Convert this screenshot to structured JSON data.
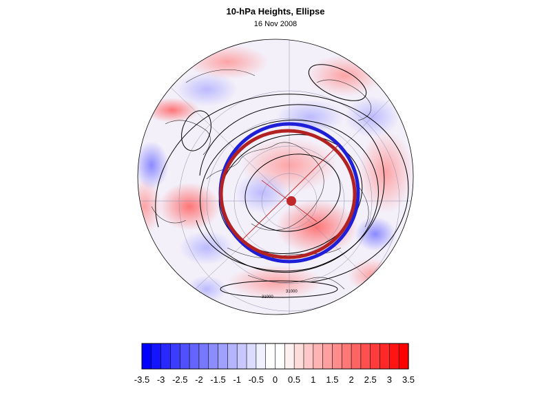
{
  "title": "10-hPa Heights, Ellipse",
  "subtitle": "16 Nov 2008",
  "map": {
    "projection": "north-polar-orthographic",
    "field": "height anomaly (shaded)",
    "contour_labels": [
      "31000",
      "31000"
    ],
    "ellipse_colors": {
      "outer": "#1f1fd8",
      "inner": "#b22222"
    },
    "centroid_color": "#c0282b"
  },
  "colorbar": {
    "levels": [
      -3.5,
      -3.25,
      -3,
      -2.75,
      -2.5,
      -2.25,
      -2,
      -1.75,
      -1.5,
      -1.25,
      -1,
      -0.75,
      -0.5,
      -0.25,
      0,
      0.25,
      0.5,
      0.75,
      1,
      1.25,
      1.5,
      1.75,
      2,
      2.25,
      2.5,
      2.75,
      3,
      3.25,
      3.5
    ],
    "tick_labels": [
      "-3.5",
      "-3",
      "-2.5",
      "-2",
      "-1.5",
      "-1",
      "-0.5",
      "0",
      "0.5",
      "1",
      "1.5",
      "2",
      "2.5",
      "3",
      "3.5"
    ],
    "colors": [
      "#0000ff",
      "#1414ff",
      "#2828ff",
      "#3c3cff",
      "#5050ff",
      "#6464ff",
      "#7878ff",
      "#8c8cff",
      "#a0a0ff",
      "#b4b4ff",
      "#c8c8ff",
      "#dcdcff",
      "#f0f0ff",
      "#ffffff",
      "#ffffff",
      "#fff0f0",
      "#ffdcdc",
      "#ffc8c8",
      "#ffb4b4",
      "#ffa0a0",
      "#ff8c8c",
      "#ff7878",
      "#ff6464",
      "#ff5050",
      "#ff3c3c",
      "#ff2828",
      "#ff1414",
      "#ff0000"
    ]
  }
}
